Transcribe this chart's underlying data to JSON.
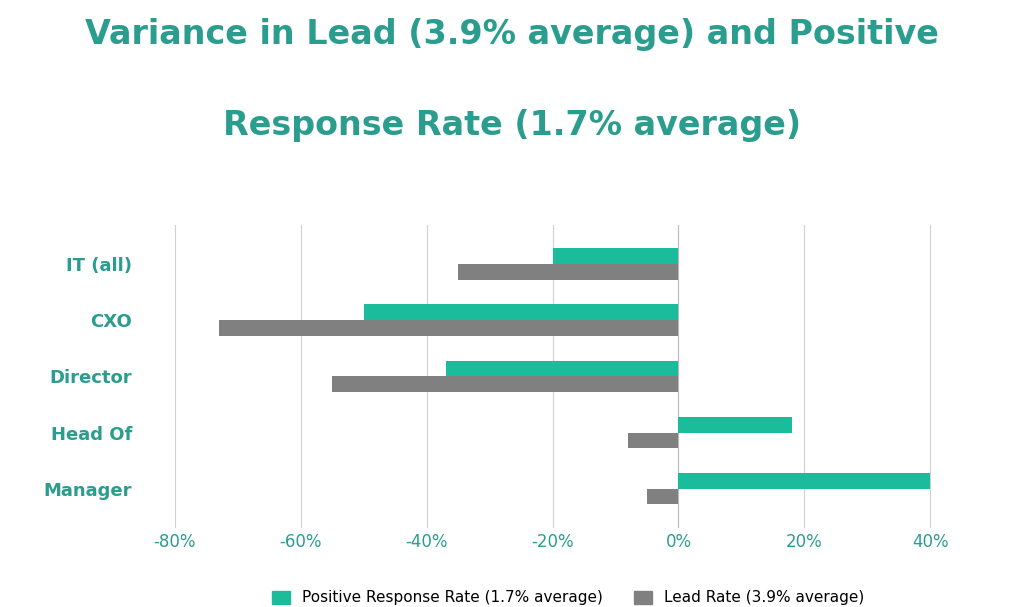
{
  "title_line1": "Variance in Lead (3.9% average) and Positive",
  "title_line2": "Response Rate (1.7% average)",
  "categories": [
    "IT (all)",
    "CXO",
    "Director",
    "Head Of",
    "Manager"
  ],
  "positive_response_rate": [
    -20,
    -50,
    -37,
    18,
    40
  ],
  "lead_rate": [
    -35,
    -73,
    -55,
    -8,
    -5
  ],
  "positive_response_color": "#1abc9c",
  "lead_rate_color": "#808080",
  "background_color": "#ffffff",
  "title_color": "#2a9d8f",
  "label_color": "#2a9d8f",
  "tick_color": "#2a9d8f",
  "xlim": [
    -85,
    50
  ],
  "xticks": [
    -80,
    -60,
    -40,
    -20,
    0,
    20,
    40
  ],
  "xtick_labels": [
    "-80%",
    "-60%",
    "-40%",
    "-20%",
    "0%",
    "20%",
    "40%"
  ],
  "legend_positive": "Positive Response Rate (1.7% average)",
  "legend_lead": "Lead Rate (3.9% average)",
  "bar_height": 0.28,
  "title_fontsize": 24,
  "axis_label_fontsize": 12,
  "legend_fontsize": 11,
  "category_fontsize": 13
}
